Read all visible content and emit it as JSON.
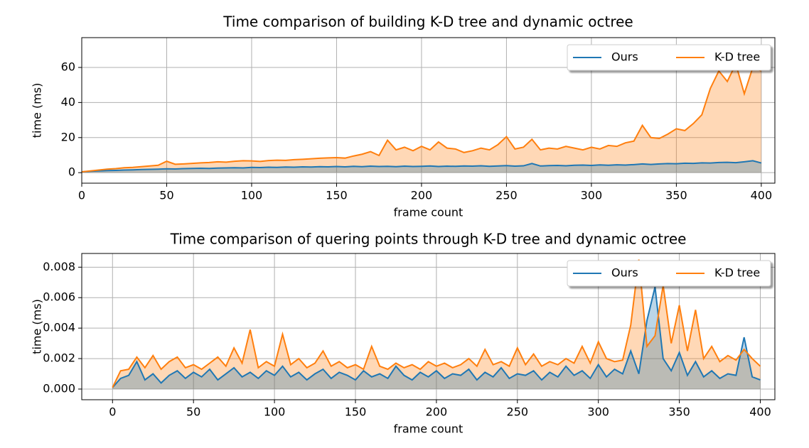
{
  "chart_data": [
    {
      "type": "line",
      "title": "Time comparison of building K-D tree and dynamic octree",
      "xlabel": "frame count",
      "ylabel": "time (ms)",
      "grid": true,
      "legend": "upper right",
      "fill": true,
      "x": [
        0,
        5,
        10,
        15,
        20,
        25,
        30,
        35,
        40,
        45,
        50,
        55,
        60,
        65,
        70,
        75,
        80,
        85,
        90,
        95,
        100,
        105,
        110,
        115,
        120,
        125,
        130,
        135,
        140,
        145,
        150,
        155,
        160,
        165,
        170,
        175,
        180,
        185,
        190,
        195,
        200,
        205,
        210,
        215,
        220,
        225,
        230,
        235,
        240,
        245,
        250,
        255,
        260,
        265,
        270,
        275,
        280,
        285,
        290,
        295,
        300,
        305,
        310,
        315,
        320,
        325,
        330,
        335,
        340,
        345,
        350,
        355,
        360,
        365,
        370,
        375,
        380,
        385,
        390,
        395,
        400
      ],
      "xlim": [
        0,
        408
      ],
      "xticks": [
        0,
        50,
        100,
        150,
        200,
        250,
        300,
        350,
        400
      ],
      "ylim": [
        -6,
        77
      ],
      "yticks": [
        0,
        20,
        40,
        60
      ],
      "series": [
        {
          "name": "Ours",
          "color": "#1f77b4",
          "values": [
            0.5,
            0.8,
            1.0,
            1.2,
            1.3,
            1.5,
            1.6,
            1.8,
            1.9,
            2.0,
            2.2,
            2.1,
            2.3,
            2.4,
            2.5,
            2.4,
            2.6,
            2.7,
            2.8,
            2.7,
            3.0,
            2.9,
            3.1,
            3.0,
            3.2,
            3.1,
            3.3,
            3.2,
            3.4,
            3.3,
            3.5,
            3.3,
            3.6,
            3.4,
            3.7,
            3.5,
            3.6,
            3.4,
            3.7,
            3.5,
            3.6,
            3.8,
            3.5,
            3.7,
            3.6,
            3.8,
            3.7,
            3.9,
            3.6,
            3.8,
            4.0,
            3.7,
            3.9,
            5.2,
            3.8,
            4.0,
            4.1,
            3.9,
            4.2,
            4.3,
            4.1,
            4.4,
            4.2,
            4.5,
            4.3,
            4.6,
            5.0,
            4.7,
            5.0,
            5.2,
            5.1,
            5.4,
            5.3,
            5.6,
            5.5,
            5.8,
            5.9,
            5.7,
            6.2,
            6.8,
            5.5
          ]
        },
        {
          "name": "K-D tree",
          "color": "#ff7f0e",
          "values": [
            0.5,
            1.0,
            1.5,
            2.0,
            2.3,
            2.8,
            3.0,
            3.4,
            3.8,
            4.2,
            6.5,
            4.8,
            5.0,
            5.3,
            5.6,
            5.8,
            6.2,
            6.0,
            6.5,
            6.8,
            6.7,
            6.4,
            6.9,
            7.1,
            7.0,
            7.4,
            7.6,
            7.9,
            8.2,
            8.4,
            8.6,
            8.3,
            9.5,
            10.5,
            12.0,
            9.8,
            18.5,
            13.0,
            14.5,
            12.5,
            15.0,
            13.0,
            17.5,
            14.0,
            13.5,
            11.5,
            12.5,
            14.0,
            13.0,
            16.0,
            20.5,
            13.5,
            14.5,
            19.0,
            13.0,
            14.0,
            13.5,
            15.0,
            14.0,
            13.0,
            14.5,
            13.5,
            15.5,
            15.0,
            17.0,
            18.0,
            27.0,
            20.0,
            19.5,
            22.0,
            25.0,
            24.0,
            28.0,
            33.0,
            48.0,
            58.0,
            52.0,
            62.0,
            45.0,
            60.0,
            58.0
          ]
        }
      ]
    },
    {
      "type": "line",
      "title": "Time comparison of quering points through K-D tree and dynamic octree",
      "xlabel": "frame count",
      "ylabel": "time (ms)",
      "grid": true,
      "legend": "upper right",
      "fill": true,
      "x": [
        0,
        5,
        10,
        15,
        20,
        25,
        30,
        35,
        40,
        45,
        50,
        55,
        60,
        65,
        70,
        75,
        80,
        85,
        90,
        95,
        100,
        105,
        110,
        115,
        120,
        125,
        130,
        135,
        140,
        145,
        150,
        155,
        160,
        165,
        170,
        175,
        180,
        185,
        190,
        195,
        200,
        205,
        210,
        215,
        220,
        225,
        230,
        235,
        240,
        245,
        250,
        255,
        260,
        265,
        270,
        275,
        280,
        285,
        290,
        295,
        300,
        305,
        310,
        315,
        320,
        325,
        330,
        335,
        340,
        345,
        350,
        355,
        360,
        365,
        370,
        375,
        380,
        385,
        390,
        395,
        400
      ],
      "xlim": [
        -19,
        409
      ],
      "xticks": [
        0,
        50,
        100,
        150,
        200,
        250,
        300,
        350,
        400
      ],
      "ylim": [
        -0.0007,
        0.0089
      ],
      "yticks": [
        {
          "value": 0,
          "label": "0.000"
        },
        0.002,
        0.004,
        0.006,
        0.008
      ],
      "series": [
        {
          "name": "Ours",
          "color": "#1f77b4",
          "values": [
            0.0001,
            0.0007,
            0.0009,
            0.0018,
            0.0006,
            0.001,
            0.0004,
            0.0009,
            0.0012,
            0.0007,
            0.0011,
            0.0008,
            0.0013,
            0.0006,
            0.001,
            0.0014,
            0.0008,
            0.0011,
            0.0007,
            0.0012,
            0.0009,
            0.0015,
            0.0008,
            0.0011,
            0.0006,
            0.001,
            0.0013,
            0.0007,
            0.0011,
            0.0009,
            0.0006,
            0.0012,
            0.0008,
            0.001,
            0.0007,
            0.0015,
            0.0009,
            0.0006,
            0.0011,
            0.0008,
            0.0012,
            0.0007,
            0.001,
            0.0009,
            0.0013,
            0.0006,
            0.0011,
            0.0008,
            0.0014,
            0.0007,
            0.001,
            0.0009,
            0.0012,
            0.0006,
            0.0011,
            0.0008,
            0.0015,
            0.0009,
            0.0012,
            0.0007,
            0.0016,
            0.0008,
            0.0013,
            0.001,
            0.0025,
            0.001,
            0.0045,
            0.0067,
            0.002,
            0.0012,
            0.0024,
            0.0009,
            0.0018,
            0.0008,
            0.0012,
            0.0007,
            0.001,
            0.0009,
            0.0034,
            0.0008,
            0.0006
          ]
        },
        {
          "name": "K-D tree",
          "color": "#ff7f0e",
          "values": [
            0.0001,
            0.0012,
            0.0013,
            0.0021,
            0.0014,
            0.0022,
            0.0013,
            0.0018,
            0.0021,
            0.0014,
            0.0016,
            0.0013,
            0.0017,
            0.0021,
            0.0015,
            0.0027,
            0.0017,
            0.0039,
            0.0014,
            0.0018,
            0.0015,
            0.0036,
            0.0016,
            0.002,
            0.0014,
            0.0017,
            0.0025,
            0.0015,
            0.0018,
            0.0014,
            0.0016,
            0.0013,
            0.0028,
            0.0015,
            0.0013,
            0.0017,
            0.0014,
            0.0016,
            0.0013,
            0.0018,
            0.0015,
            0.0017,
            0.0014,
            0.0016,
            0.002,
            0.0015,
            0.0026,
            0.0016,
            0.0018,
            0.0015,
            0.0027,
            0.0016,
            0.0023,
            0.0015,
            0.0018,
            0.0016,
            0.002,
            0.0017,
            0.0028,
            0.0017,
            0.0031,
            0.002,
            0.0018,
            0.0019,
            0.0042,
            0.0085,
            0.0028,
            0.0035,
            0.0068,
            0.003,
            0.0055,
            0.0025,
            0.0052,
            0.002,
            0.0028,
            0.0018,
            0.0022,
            0.0019,
            0.0026,
            0.002,
            0.0015
          ]
        }
      ]
    }
  ]
}
